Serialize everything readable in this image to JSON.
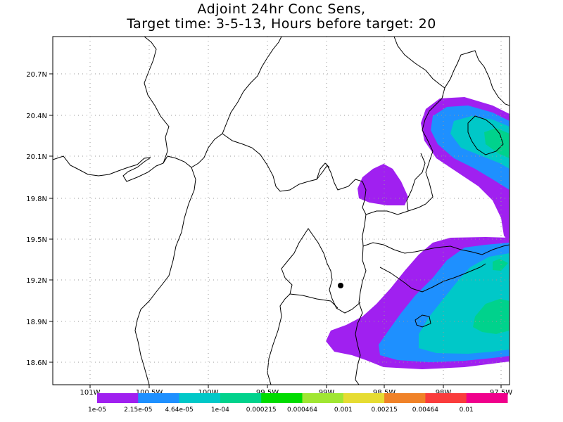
{
  "title": {
    "line1": "Adjoint 24hr Conc Sens,",
    "line2": "Target time: 3-5-13, Hours before target: 20"
  },
  "y_ticks": [
    "20.7N",
    "20.4N",
    "20.1N",
    "19.8N",
    "19.5N",
    "19.2N",
    "18.9N",
    "18.6N"
  ],
  "x_ticks": [
    "101W",
    "100.5W",
    "100W",
    "99.5W",
    "99W",
    "98.5W",
    "98W",
    "97.5W"
  ],
  "colorbar": {
    "colors": [
      "#a020f0",
      "#1e90ff",
      "#00c8c8",
      "#00d28c",
      "#00dc00",
      "#a0e632",
      "#e6dc32",
      "#f08228",
      "#fa3c3c",
      "#f0008c"
    ],
    "labels": [
      "1e-05",
      "2.15e-05",
      "4.64e-05",
      "1e-04",
      "0.000215",
      "0.000464",
      "0.001",
      "0.00215",
      "0.00464",
      "0.01"
    ]
  },
  "target_marker": "black-dot",
  "map": {
    "lat_range": [
      18.45,
      20.95
    ],
    "lon_range": [
      -101.25,
      -97.5
    ],
    "grid": "dotted"
  }
}
